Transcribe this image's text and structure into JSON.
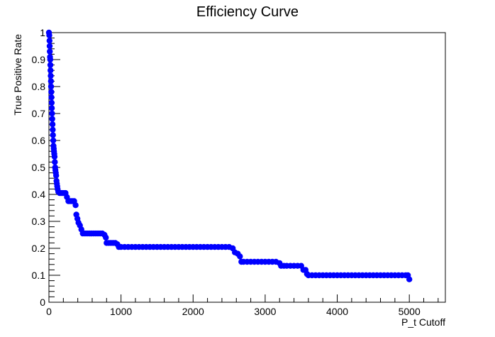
{
  "chart_data": {
    "type": "scatter",
    "title": "Efficiency Curve",
    "xlabel": "P_t Cutoff",
    "ylabel": "True Positive Rate",
    "xlim": [
      0,
      5500
    ],
    "ylim": [
      0,
      1
    ],
    "x_ticks": [
      0,
      1000,
      2000,
      3000,
      4000,
      5000
    ],
    "y_ticks": [
      0,
      0.1,
      0.2,
      0.3,
      0.4,
      0.5,
      0.6,
      0.7,
      0.8,
      0.9,
      1
    ],
    "x_tick_labels": [
      "0",
      "1000",
      "2000",
      "3000",
      "4000",
      "5000"
    ],
    "y_tick_labels": [
      "0",
      "0.1",
      "0.2",
      "0.3",
      "0.4",
      "0.5",
      "0.6",
      "0.7",
      "0.8",
      "0.9",
      "1"
    ],
    "marker_color": "#0000ff",
    "grid": false,
    "series": [
      {
        "points": [
          [
            0,
            1.0
          ],
          [
            5,
            0.99
          ],
          [
            8,
            0.97
          ],
          [
            10,
            0.95
          ],
          [
            12,
            0.93
          ],
          [
            15,
            0.91
          ],
          [
            18,
            0.9
          ],
          [
            20,
            0.88
          ],
          [
            22,
            0.86
          ],
          [
            25,
            0.84
          ],
          [
            28,
            0.82
          ],
          [
            30,
            0.8
          ],
          [
            33,
            0.78
          ],
          [
            35,
            0.76
          ],
          [
            38,
            0.74
          ],
          [
            40,
            0.72
          ],
          [
            43,
            0.7
          ],
          [
            46,
            0.68
          ],
          [
            50,
            0.66
          ],
          [
            53,
            0.64
          ],
          [
            56,
            0.62
          ],
          [
            60,
            0.6
          ],
          [
            63,
            0.58
          ],
          [
            67,
            0.57
          ],
          [
            70,
            0.56
          ],
          [
            74,
            0.55
          ],
          [
            78,
            0.54
          ],
          [
            82,
            0.52
          ],
          [
            86,
            0.5
          ],
          [
            90,
            0.49
          ],
          [
            95,
            0.48
          ],
          [
            100,
            0.47
          ],
          [
            105,
            0.45
          ],
          [
            110,
            0.44
          ],
          [
            115,
            0.43
          ],
          [
            120,
            0.42
          ],
          [
            130,
            0.41
          ],
          [
            150,
            0.405
          ],
          [
            170,
            0.405
          ],
          [
            190,
            0.405
          ],
          [
            210,
            0.405
          ],
          [
            230,
            0.405
          ],
          [
            250,
            0.39
          ],
          [
            270,
            0.375
          ],
          [
            290,
            0.375
          ],
          [
            310,
            0.375
          ],
          [
            330,
            0.375
          ],
          [
            350,
            0.375
          ],
          [
            370,
            0.36
          ],
          [
            380,
            0.325
          ],
          [
            395,
            0.31
          ],
          [
            410,
            0.295
          ],
          [
            430,
            0.285
          ],
          [
            450,
            0.27
          ],
          [
            470,
            0.255
          ],
          [
            500,
            0.255
          ],
          [
            530,
            0.255
          ],
          [
            560,
            0.255
          ],
          [
            590,
            0.255
          ],
          [
            620,
            0.255
          ],
          [
            650,
            0.255
          ],
          [
            680,
            0.255
          ],
          [
            710,
            0.255
          ],
          [
            740,
            0.255
          ],
          [
            770,
            0.25
          ],
          [
            790,
            0.24
          ],
          [
            800,
            0.22
          ],
          [
            830,
            0.22
          ],
          [
            860,
            0.22
          ],
          [
            890,
            0.22
          ],
          [
            920,
            0.22
          ],
          [
            950,
            0.215
          ],
          [
            970,
            0.205
          ],
          [
            1000,
            0.205
          ],
          [
            1050,
            0.205
          ],
          [
            1100,
            0.205
          ],
          [
            1150,
            0.205
          ],
          [
            1200,
            0.205
          ],
          [
            1250,
            0.205
          ],
          [
            1300,
            0.205
          ],
          [
            1350,
            0.205
          ],
          [
            1400,
            0.205
          ],
          [
            1450,
            0.205
          ],
          [
            1500,
            0.205
          ],
          [
            1550,
            0.205
          ],
          [
            1600,
            0.205
          ],
          [
            1650,
            0.205
          ],
          [
            1700,
            0.205
          ],
          [
            1750,
            0.205
          ],
          [
            1800,
            0.205
          ],
          [
            1850,
            0.205
          ],
          [
            1900,
            0.205
          ],
          [
            1950,
            0.205
          ],
          [
            2000,
            0.205
          ],
          [
            2050,
            0.205
          ],
          [
            2100,
            0.205
          ],
          [
            2150,
            0.205
          ],
          [
            2200,
            0.205
          ],
          [
            2250,
            0.205
          ],
          [
            2300,
            0.205
          ],
          [
            2350,
            0.205
          ],
          [
            2400,
            0.205
          ],
          [
            2450,
            0.205
          ],
          [
            2500,
            0.205
          ],
          [
            2550,
            0.2
          ],
          [
            2580,
            0.185
          ],
          [
            2620,
            0.18
          ],
          [
            2650,
            0.17
          ],
          [
            2670,
            0.15
          ],
          [
            2700,
            0.15
          ],
          [
            2750,
            0.15
          ],
          [
            2800,
            0.15
          ],
          [
            2850,
            0.15
          ],
          [
            2900,
            0.15
          ],
          [
            2950,
            0.15
          ],
          [
            3000,
            0.15
          ],
          [
            3050,
            0.15
          ],
          [
            3100,
            0.15
          ],
          [
            3150,
            0.15
          ],
          [
            3200,
            0.145
          ],
          [
            3220,
            0.135
          ],
          [
            3260,
            0.135
          ],
          [
            3300,
            0.135
          ],
          [
            3350,
            0.135
          ],
          [
            3400,
            0.135
          ],
          [
            3450,
            0.135
          ],
          [
            3500,
            0.135
          ],
          [
            3530,
            0.12
          ],
          [
            3560,
            0.12
          ],
          [
            3580,
            0.105
          ],
          [
            3600,
            0.1
          ],
          [
            3650,
            0.1
          ],
          [
            3700,
            0.1
          ],
          [
            3750,
            0.1
          ],
          [
            3800,
            0.1
          ],
          [
            3850,
            0.1
          ],
          [
            3900,
            0.1
          ],
          [
            3950,
            0.1
          ],
          [
            4000,
            0.1
          ],
          [
            4050,
            0.1
          ],
          [
            4100,
            0.1
          ],
          [
            4150,
            0.1
          ],
          [
            4200,
            0.1
          ],
          [
            4250,
            0.1
          ],
          [
            4300,
            0.1
          ],
          [
            4350,
            0.1
          ],
          [
            4400,
            0.1
          ],
          [
            4450,
            0.1
          ],
          [
            4500,
            0.1
          ],
          [
            4550,
            0.1
          ],
          [
            4600,
            0.1
          ],
          [
            4650,
            0.1
          ],
          [
            4700,
            0.1
          ],
          [
            4750,
            0.1
          ],
          [
            4800,
            0.1
          ],
          [
            4850,
            0.1
          ],
          [
            4900,
            0.1
          ],
          [
            4950,
            0.1
          ],
          [
            4980,
            0.1
          ],
          [
            5000,
            0.085
          ]
        ]
      }
    ]
  }
}
